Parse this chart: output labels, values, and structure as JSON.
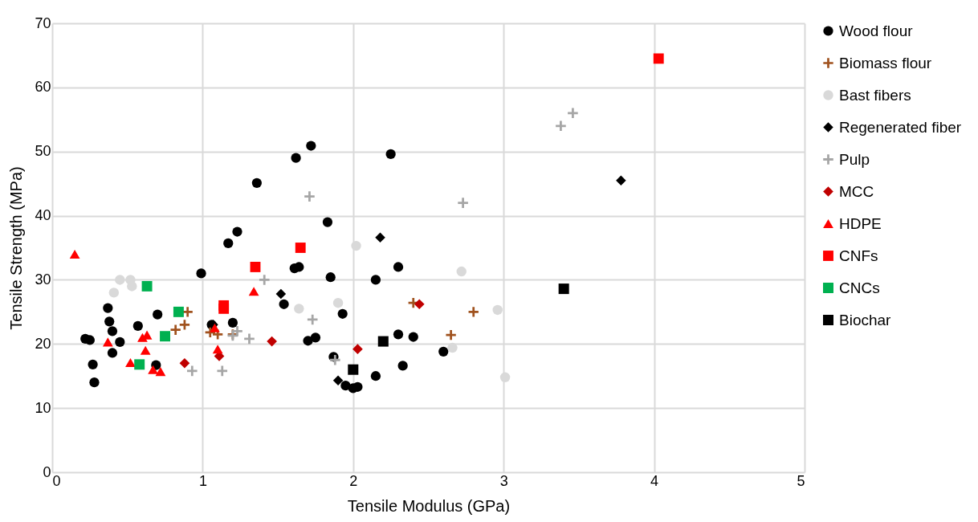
{
  "chart_data": {
    "type": "scatter",
    "xlabel": "Tensile Modulus (GPa)",
    "ylabel": "Tensile Strength (MPa)",
    "xlim": [
      0,
      5
    ],
    "xticks": [
      0,
      1,
      2,
      3,
      4,
      5
    ],
    "ylim": [
      0,
      70
    ],
    "yticks": [
      0,
      10,
      20,
      30,
      40,
      50,
      60,
      70
    ],
    "grid": true,
    "legend": "right",
    "series": [
      {
        "name": "Wood flour",
        "color": "#000000",
        "marker": "circle",
        "x": [
          0.22,
          0.25,
          0.27,
          0.28,
          0.37,
          0.38,
          0.4,
          0.4,
          0.45,
          0.57,
          0.69,
          0.7,
          0.99,
          1.06,
          1.17,
          1.2,
          1.23,
          1.36,
          1.54,
          1.61,
          1.62,
          1.64,
          1.7,
          1.72,
          1.75,
          1.83,
          1.85,
          1.87,
          1.93,
          1.95,
          2.0,
          2.03,
          2.15,
          2.15,
          2.25,
          2.3,
          2.3,
          2.33,
          2.4,
          2.6
        ],
        "values": [
          20.8,
          20.6,
          16.8,
          14,
          25.6,
          23.5,
          22,
          18.6,
          20.3,
          22.8,
          16.7,
          24.6,
          31,
          23,
          35.7,
          23.3,
          37.5,
          45.1,
          26.2,
          31.8,
          49,
          32,
          20.5,
          50.9,
          21,
          39,
          30.4,
          18,
          24.7,
          13.5,
          13.1,
          13.3,
          30,
          15,
          49.6,
          32,
          21.5,
          16.6,
          21.1,
          18.8
        ]
      },
      {
        "name": "Biomass flour",
        "color": "#a0521e",
        "marker": "cross",
        "x": [
          0.82,
          0.88,
          0.9,
          1.05,
          1.1,
          1.2,
          2.4,
          2.65,
          2.8
        ],
        "values": [
          22.2,
          23,
          25,
          21.8,
          21.5,
          21.5,
          26.4,
          21.4,
          25
        ]
      },
      {
        "name": "Bast fibers",
        "color": "#d9d9d9",
        "marker": "circle",
        "x": [
          0.41,
          0.45,
          0.52,
          0.53,
          1.64,
          1.9,
          2.02,
          2.66,
          2.72,
          2.96,
          3.01
        ],
        "values": [
          28,
          30,
          30,
          29,
          25.5,
          26.4,
          35.3,
          19.4,
          31.3,
          25.3,
          14.8
        ]
      },
      {
        "name": "Regenerated fiber",
        "color": "#000000",
        "marker": "diamond",
        "x": [
          1.07,
          1.52,
          1.9,
          2.18,
          3.78
        ],
        "values": [
          23,
          27.8,
          14.3,
          36.6,
          45.5
        ]
      },
      {
        "name": "Pulp",
        "color": "#a6a6a6",
        "marker": "cross",
        "x": [
          0.93,
          1.13,
          1.2,
          1.23,
          1.31,
          1.41,
          1.73,
          1.71,
          1.88,
          2.73,
          3.38,
          3.46
        ],
        "values": [
          15.8,
          15.8,
          21.3,
          22,
          20.8,
          30,
          23.8,
          43,
          17.5,
          42,
          54,
          56
        ]
      },
      {
        "name": "MCC",
        "color": "#c00000",
        "marker": "diamond",
        "x": [
          0.88,
          1.11,
          1.46,
          2.03,
          2.44
        ],
        "values": [
          17,
          18.1,
          20.4,
          19.2,
          26.2
        ]
      },
      {
        "name": "HDPE",
        "color": "#ff0000",
        "marker": "triangle",
        "x": [
          0.15,
          0.37,
          0.52,
          0.6,
          0.63,
          0.62,
          0.67,
          0.72,
          1.08,
          1.1,
          1.34
        ],
        "values": [
          34,
          20.3,
          17.1,
          21,
          21.4,
          19,
          16,
          15.7,
          22.5,
          19.2,
          28.2
        ]
      },
      {
        "name": "CNFs",
        "color": "#ff0000",
        "marker": "square",
        "x": [
          1.14,
          1.14,
          1.35,
          1.65,
          4.03
        ],
        "values": [
          25.5,
          26,
          32,
          35,
          64.5
        ]
      },
      {
        "name": "CNCs",
        "color": "#00b050",
        "marker": "square",
        "x": [
          0.58,
          0.63,
          0.75,
          0.84
        ],
        "values": [
          16.8,
          29,
          21.2,
          25
        ]
      },
      {
        "name": "Biochar",
        "color": "#000000",
        "marker": "square",
        "x": [
          2.0,
          2.2,
          3.4
        ],
        "values": [
          16,
          20.4,
          28.6
        ]
      }
    ]
  }
}
